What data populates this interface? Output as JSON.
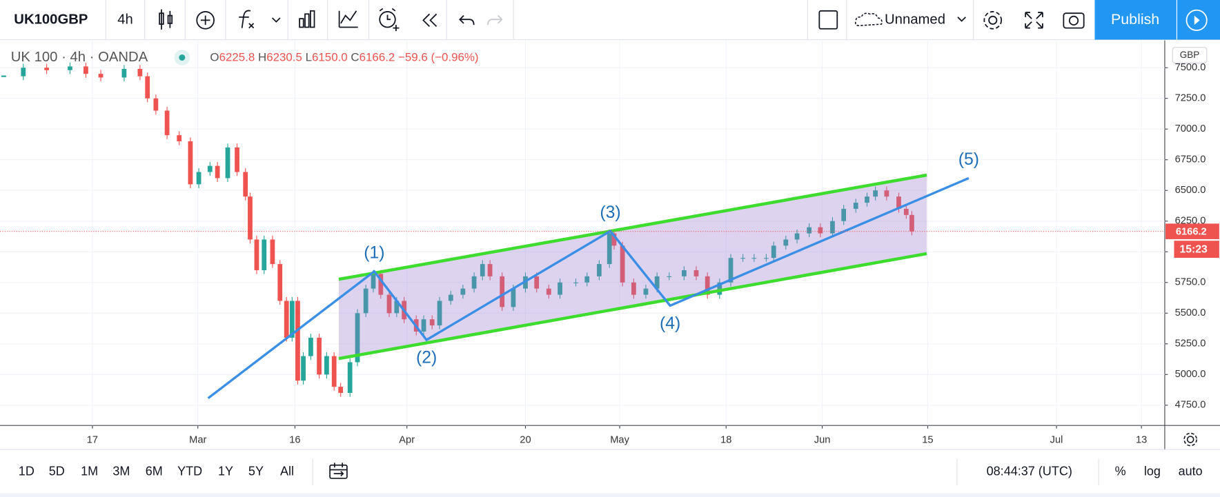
{
  "toolbar": {
    "symbol": "UK100GBP",
    "interval": "4h",
    "layout_name": "Unnamed",
    "publish": "Publish"
  },
  "legend": {
    "title": "UK 100 · 4h · OANDA",
    "ohlc": [
      {
        "key": "O",
        "value": 6225.8,
        "label": "6225.8"
      },
      {
        "key": "H",
        "value": 6230.5,
        "label": "6230.5"
      },
      {
        "key": "L",
        "value": 6150.0,
        "label": "6150.0"
      },
      {
        "key": "C",
        "value": 6166.2,
        "label": "6166.2"
      }
    ],
    "change": {
      "value": -59.6,
      "label": "−59.6"
    },
    "change_pct": {
      "value": -0.96,
      "label": "(−0.96%)"
    }
  },
  "chart_data": {
    "type": "candlestick",
    "currency": "GBP",
    "up_color": "#26a69a",
    "down_color": "#ef5350",
    "x": [
      0.4,
      2.5,
      5,
      7.5,
      9.2,
      10.8,
      13.3,
      15,
      15.8,
      16.7,
      17.9,
      19.2,
      20.4,
      21.3,
      22.5,
      23.3,
      24.4,
      25.4,
      26.3,
      26.8,
      27.5,
      28.3,
      29.2,
      30,
      30.7,
      31.3,
      31.9,
      32.5,
      33.3,
      34.2,
      35,
      35.8,
      36.5,
      37.5,
      38.3,
      39.2,
      40,
      40.8,
      41.7,
      42.5,
      43.3,
      44.6,
      45.4,
      46.3,
      47.1,
      48.3,
      49.6,
      50.8,
      51.7,
      52.5,
      53.8,
      55,
      56.3,
      57.5,
      58.8,
      60,
      61.7,
      62.9,
      64.2,
      65.3,
      65.8,
      66.7,
      67.9,
      69.2,
      70.4,
      71.7,
      73.3,
      74.6,
      75.8,
      77.1,
      78.3,
      79.6,
      80.8,
      82.1,
      82.9,
      84.2,
      85.4,
      86.7,
      87.9,
      89.2,
      90.4,
      91.7,
      92.9,
      93.8,
      95,
      96.3,
      97.1,
      97.7
    ],
    "values": [
      7430,
      7500,
      7480,
      7510,
      7450,
      7420,
      7490,
      7430,
      7250,
      7150,
      6950,
      6900,
      6550,
      6650,
      6700,
      6600,
      6850,
      6650,
      6450,
      6100,
      5850,
      6100,
      5900,
      5600,
      5300,
      5600,
      4950,
      5150,
      5300,
      5000,
      5150,
      4900,
      4850,
      5100,
      5500,
      5700,
      5820,
      5650,
      5500,
      5600,
      5450,
      5350,
      5450,
      5400,
      5600,
      5650,
      5700,
      5800,
      5900,
      5800,
      5550,
      5700,
      5800,
      5700,
      5650,
      5750,
      5750,
      5800,
      5900,
      6150,
      6050,
      5750,
      5650,
      5700,
      5800,
      5800,
      5850,
      5800,
      5650,
      5750,
      5950,
      5950,
      5950,
      5950,
      6050,
      6100,
      6150,
      6200,
      6150,
      6250,
      6350,
      6400,
      6450,
      6500,
      6450,
      6350,
      6300,
      6166.2
    ],
    "xlim": [
      0,
      124.8
    ],
    "xticks": [
      {
        "value": 9.9,
        "label": "17"
      },
      {
        "value": 21.2,
        "label": "Mar"
      },
      {
        "value": 31.6,
        "label": "16"
      },
      {
        "value": 43.6,
        "label": "Apr"
      },
      {
        "value": 56.3,
        "label": "20"
      },
      {
        "value": 66.4,
        "label": "May"
      },
      {
        "value": 77.8,
        "label": "18"
      },
      {
        "value": 88.1,
        "label": "Jun"
      },
      {
        "value": 99.4,
        "label": "15"
      },
      {
        "value": 113.2,
        "label": "Jul"
      },
      {
        "value": 122.3,
        "label": "13"
      }
    ],
    "ylim": [
      4585,
      7722
    ],
    "yticks": [
      {
        "value": 7500,
        "label": "7500.0"
      },
      {
        "value": 7250,
        "label": "7250.0"
      },
      {
        "value": 7000,
        "label": "7000.0"
      },
      {
        "value": 6750,
        "label": "6750.0"
      },
      {
        "value": 6500,
        "label": "6500.0"
      },
      {
        "value": 6250,
        "label": "6250.0"
      },
      {
        "value": 6000,
        "label": "6000.0"
      },
      {
        "value": 5750,
        "label": "5750.0"
      },
      {
        "value": 5500,
        "label": "5500.0"
      },
      {
        "value": 5250,
        "label": "5250.0"
      },
      {
        "value": 5000,
        "label": "5000.0"
      },
      {
        "value": 4750,
        "label": "4750.0"
      }
    ],
    "grid": true,
    "last_price": 6166.2,
    "countdown": "15:23",
    "drawings": {
      "channel": {
        "fill": "rgba(149,117,205,0.32)",
        "color": "#3ddc2f",
        "upper": {
          "x": [
            36.3,
            99.3
          ],
          "y": [
            5776,
            6625
          ]
        },
        "lower": {
          "x": [
            36.3,
            99.3
          ],
          "y": [
            5130,
            5985
          ]
        }
      },
      "wave": {
        "color": "#3a8ee6",
        "label_color": "#1e6fb8",
        "x": [
          22.3,
          40.1,
          45.7,
          65.4,
          71.8,
          103.8
        ],
        "y": [
          4807,
          5840,
          5282,
          6169,
          5561,
          6600
        ],
        "labels": [
          null,
          "(1)",
          "(2)",
          "(3)",
          "(4)",
          "(5)"
        ],
        "label_positions": [
          null,
          "above",
          "below",
          "above",
          "below",
          "above"
        ]
      }
    }
  },
  "bottom_bar": {
    "ranges": [
      "1D",
      "5D",
      "1M",
      "3M",
      "6M",
      "YTD",
      "1Y",
      "5Y",
      "All"
    ],
    "clock": "08:44:37 (UTC)",
    "options": [
      "%",
      "log",
      "auto"
    ]
  }
}
